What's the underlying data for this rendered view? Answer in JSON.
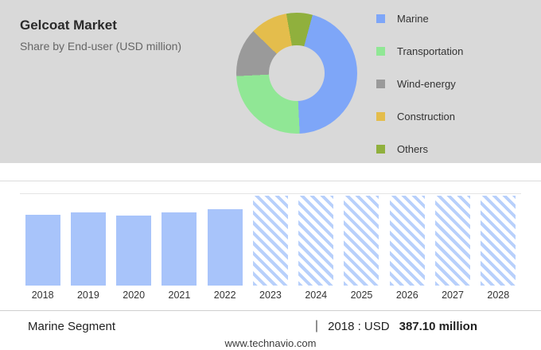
{
  "header": {
    "title": "Gelcoat Market",
    "subtitle": "Share by End-user (USD million)"
  },
  "legend": [
    {
      "label": "Marine",
      "color": "#7ea6f8"
    },
    {
      "label": "Transportation",
      "color": "#90e795"
    },
    {
      "label": "Wind-energy",
      "color": "#9a9a9a"
    },
    {
      "label": "Construction",
      "color": "#e4bd4c"
    },
    {
      "label": "Others",
      "color": "#90b03d"
    }
  ],
  "chart_data": [
    {
      "type": "pie",
      "title": "Gelcoat Market Share by End-user (USD million)",
      "labels": [
        "Others",
        "Marine",
        "Transportation",
        "Wind-energy",
        "Construction"
      ],
      "values": [
        7,
        45,
        25,
        13,
        10
      ],
      "colors": [
        "#90b03d",
        "#7ea6f8",
        "#90e795",
        "#9a9a9a",
        "#e4bd4c"
      ],
      "donut": true,
      "start_angle": -10,
      "legend_position": "right",
      "note": "slice percentages estimated from donut arc sizes"
    },
    {
      "type": "bar",
      "categories": [
        "2018",
        "2019",
        "2020",
        "2021",
        "2022",
        "2023",
        "2024",
        "2025",
        "2026",
        "2027",
        "2028"
      ],
      "series": [
        {
          "name": "Gelcoat Market, Marine segment (USD million)",
          "values": [
            387.1,
            400,
            383,
            400,
            417,
            490,
            490,
            490,
            490,
            490,
            490
          ]
        }
      ],
      "ylim": [
        0,
        500
      ],
      "solid_through": "2022",
      "forecast_from": "2023",
      "note": "2018 value labeled 387.10; other values estimated from bar heights; 2023-2028 forecast rendered as hatched bars",
      "xlabel": "",
      "ylabel": ""
    }
  ],
  "footer": {
    "segment": "Marine Segment",
    "divider": "|",
    "stat_prefix": "2018 : USD",
    "stat_value": "387.10 million",
    "website": "www.technavio.com"
  }
}
